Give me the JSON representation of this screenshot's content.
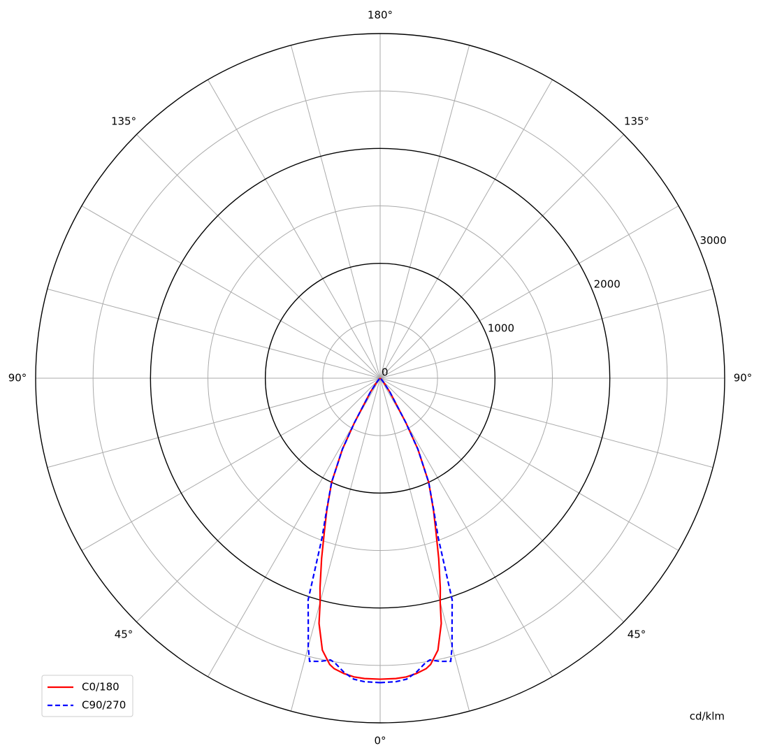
{
  "chart_data": {
    "type": "polar",
    "rlim": [
      0,
      3000
    ],
    "rticks": [
      0,
      1000,
      2000,
      3000
    ],
    "r_minor_ticks": [
      500,
      1500,
      2500
    ],
    "theta_grid": [
      0,
      15,
      30,
      45,
      60,
      75,
      90,
      105,
      120,
      135,
      150,
      165,
      180,
      195,
      210,
      225,
      240,
      255,
      270,
      285,
      300,
      315,
      330,
      345
    ],
    "theta_ticks": [
      {
        "value": 0,
        "label": "0°"
      },
      {
        "value": 45,
        "label": "45°"
      },
      {
        "value": 90,
        "label": "90°"
      },
      {
        "value": 135,
        "label": "135°"
      },
      {
        "value": 180,
        "label": "180°"
      }
    ],
    "r_unit": "cd/klm",
    "legend": "lower left",
    "x": [
      0,
      3,
      5,
      7,
      9,
      10,
      12,
      14,
      15,
      16,
      18,
      20,
      22,
      25,
      28,
      30,
      35,
      40,
      50,
      60,
      90
    ],
    "series": [
      {
        "name": "C0/180",
        "color": "#ff0000",
        "dash": false,
        "values": [
          2620,
          2618,
          2610,
          2590,
          2560,
          2530,
          2420,
          2200,
          2020,
          1900,
          1650,
          1420,
          1240,
          1000,
          700,
          450,
          150,
          50,
          10,
          0,
          0
        ]
      },
      {
        "name": "C90/270",
        "color": "#0000ff",
        "dash": true,
        "values": [
          2650,
          2645,
          2630,
          2580,
          2510,
          2490,
          2520,
          2540,
          2420,
          2270,
          2030,
          1480,
          1250,
          1000,
          700,
          450,
          150,
          50,
          10,
          0,
          0
        ]
      }
    ]
  }
}
